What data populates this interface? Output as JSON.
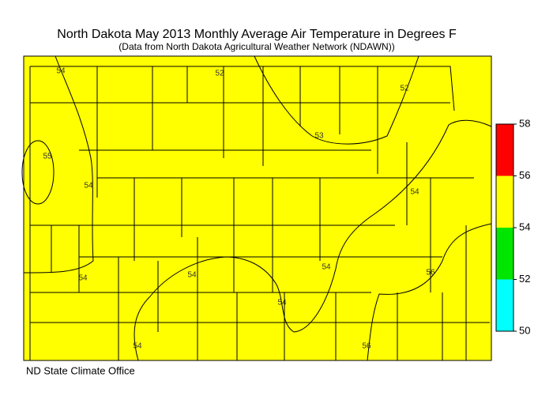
{
  "title": "North Dakota May 2013 Monthly Average Air Temperature in Degrees F",
  "subtitle": "(Data from North Dakota Agricultural Weather Network (NDAWN))",
  "credit": "ND State Climate Office",
  "legend": {
    "ticks": [
      50,
      52,
      54,
      56,
      58
    ],
    "colors": [
      "#00ffff",
      "#00e600",
      "#ffff00",
      "#ff0000"
    ]
  },
  "contour_labels": [
    "54",
    "52",
    "52",
    "53",
    "55",
    "54",
    "54",
    "54",
    "54",
    "54",
    "56",
    "54",
    "54",
    "56"
  ]
}
